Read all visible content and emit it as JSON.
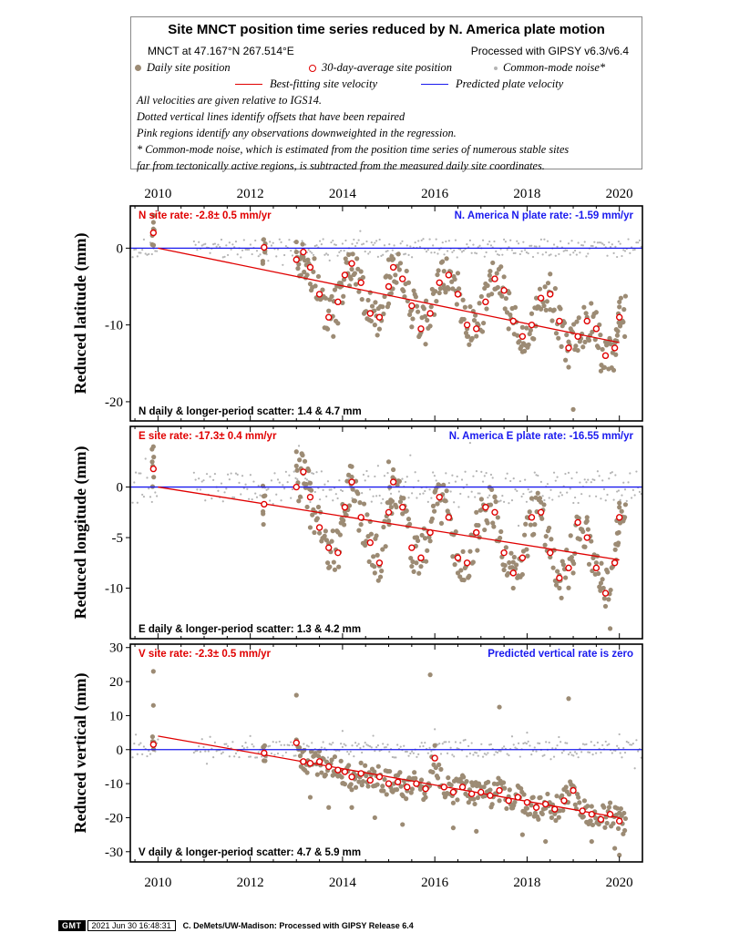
{
  "legend": {
    "title": "Site MNCT position time series reduced by N. America plate motion",
    "site_line": "MNCT at 47.167°N 267.514°E",
    "processed": "Processed with GIPSY v6.3/v6.4",
    "daily_label": "Daily site position",
    "avg_label": "30-day-average site position",
    "noise_label": "Common-mode noise*",
    "fit_label": "Best-fitting site velocity",
    "plate_label": "Predicted plate velocity",
    "notes": [
      "All velocities are given relative to IGS14.",
      "Dotted vertical lines identify offsets that have been repaired",
      "Pink regions identify any observations downweighted in the regression.",
      "* Common-mode noise, which is estimated from the position time series of numerous stable sites",
      "far from tectonically active regions, is subtracted from the measured daily site coordinates."
    ],
    "colors": {
      "daily": "#9c8b74",
      "avg": "#e00000",
      "noise": "#b4b4b4",
      "fit": "#e00000",
      "plate": "#1a1aee"
    }
  },
  "footer": {
    "logo": "GMT",
    "timestamp": "2021 Jun 30 16:48:31",
    "credit": "C. DeMets/UW-Madison: Processed with GIPSY Release 6.4"
  },
  "chart_data": [
    {
      "type": "scatter",
      "component": "N",
      "ylabel": "Reduced latitude (mm)",
      "xlim": [
        2009.4,
        2020.5
      ],
      "ylim": [
        -22.5,
        5.5
      ],
      "xticks": [
        2010,
        2012,
        2014,
        2016,
        2018,
        2020
      ],
      "yticks": [
        0,
        -10,
        -20
      ],
      "site_rate": "N site rate:  -2.8± 0.5 mm/yr",
      "plate_rate": "N. America N plate rate: -1.59 mm/yr",
      "scatter": "N daily & longer-period scatter:   1.4 &   4.7 mm",
      "fit_line": {
        "x": [
          2010.0,
          2020.0
        ],
        "y": [
          0.0,
          -12.3
        ]
      },
      "plate_line": {
        "x": [
          2009.4,
          2020.5
        ],
        "y": [
          0,
          0
        ]
      },
      "series": [
        {
          "name": "30-day-average site position",
          "x": [
            2009.9,
            2012.3,
            2013.0,
            2013.15,
            2013.3,
            2013.5,
            2013.7,
            2013.9,
            2014.05,
            2014.2,
            2014.4,
            2014.6,
            2014.8,
            2015.0,
            2015.1,
            2015.3,
            2015.5,
            2015.7,
            2015.9,
            2016.1,
            2016.3,
            2016.5,
            2016.7,
            2016.9,
            2017.1,
            2017.3,
            2017.5,
            2017.7,
            2017.9,
            2018.1,
            2018.3,
            2018.5,
            2018.7,
            2018.9,
            2019.1,
            2019.3,
            2019.5,
            2019.7,
            2019.9,
            2020.0
          ],
          "y": [
            2.0,
            0.1,
            -1.5,
            -0.5,
            -2.5,
            -6.0,
            -9.0,
            -7.0,
            -3.5,
            -2.0,
            -4.5,
            -8.5,
            -9.0,
            -5.0,
            -2.5,
            -4.0,
            -7.5,
            -10.5,
            -8.5,
            -4.5,
            -3.5,
            -6.0,
            -10.0,
            -10.5,
            -7.0,
            -4.0,
            -5.5,
            -9.5,
            -11.5,
            -10.0,
            -6.5,
            -6.0,
            -9.5,
            -13.0,
            -11.5,
            -9.5,
            -10.5,
            -14.0,
            -13.0,
            -9.0
          ]
        },
        {
          "name": "Daily site position",
          "x": [
            2009.9,
            2013.0,
            2013.5,
            2013.8,
            2014.2,
            2014.7,
            2015.0,
            2015.5,
            2015.8,
            2016.2,
            2016.7,
            2017.2,
            2017.6,
            2017.9,
            2018.2,
            2018.5,
            2018.9,
            2019.0,
            2019.3,
            2019.6,
            2019.8,
            2020.0
          ],
          "y": [
            2.5,
            -0.5,
            -6.5,
            -11.5,
            -2.0,
            -10.0,
            -1.5,
            -8.0,
            -12.5,
            -3.0,
            -11.5,
            -3.0,
            -10.5,
            -13.5,
            -6.5,
            -8.0,
            -15.5,
            -21.0,
            -9.0,
            -16.0,
            -12.0,
            -7.0
          ]
        }
      ]
    },
    {
      "type": "scatter",
      "component": "E",
      "ylabel": "Reduced longitude (mm)",
      "xlim": [
        2009.4,
        2020.5
      ],
      "ylim": [
        -15.0,
        6.0
      ],
      "xticks": [
        2010,
        2012,
        2014,
        2016,
        2018,
        2020
      ],
      "yticks": [
        0,
        -5,
        -10
      ],
      "site_rate": "E site rate: -17.3± 0.4 mm/yr",
      "plate_rate": "N. America E plate rate: -16.55 mm/yr",
      "scatter": "E daily & longer-period scatter:   1.3 &   4.2 mm",
      "fit_line": {
        "x": [
          2010.0,
          2020.0
        ],
        "y": [
          0.0,
          -7.2
        ]
      },
      "plate_line": {
        "x": [
          2009.4,
          2020.5
        ],
        "y": [
          0,
          0
        ]
      },
      "series": [
        {
          "name": "30-day-average site position",
          "x": [
            2009.9,
            2012.3,
            2013.0,
            2013.15,
            2013.3,
            2013.5,
            2013.7,
            2013.9,
            2014.05,
            2014.2,
            2014.4,
            2014.6,
            2014.8,
            2015.0,
            2015.1,
            2015.3,
            2015.5,
            2015.7,
            2015.9,
            2016.1,
            2016.3,
            2016.5,
            2016.7,
            2016.9,
            2017.1,
            2017.3,
            2017.5,
            2017.7,
            2017.9,
            2018.1,
            2018.3,
            2018.5,
            2018.7,
            2018.9,
            2019.1,
            2019.3,
            2019.5,
            2019.7,
            2019.9,
            2020.0
          ],
          "y": [
            1.8,
            -1.7,
            0.0,
            1.5,
            -1.0,
            -4.0,
            -6.0,
            -6.5,
            -2.0,
            0.5,
            -3.0,
            -5.5,
            -7.5,
            -2.5,
            0.5,
            -2.0,
            -6.0,
            -7.0,
            -4.5,
            -1.0,
            -3.0,
            -7.0,
            -7.5,
            -4.5,
            -2.0,
            -2.5,
            -6.5,
            -8.5,
            -7.0,
            -3.0,
            -2.5,
            -6.5,
            -9.0,
            -8.0,
            -3.5,
            -5.0,
            -8.0,
            -10.5,
            -7.5,
            -3.0
          ]
        },
        {
          "name": "Daily site position",
          "x": [
            2009.9,
            2013.0,
            2013.3,
            2013.7,
            2014.2,
            2014.7,
            2015.0,
            2015.6,
            2016.0,
            2016.5,
            2016.9,
            2017.3,
            2017.7,
            2018.0,
            2018.3,
            2018.7,
            2019.0,
            2019.3,
            2019.6,
            2019.8,
            2020.0
          ],
          "y": [
            4.0,
            3.5,
            -4.0,
            -8.0,
            1.0,
            -8.5,
            2.5,
            -7.5,
            -0.5,
            -8.5,
            -2.5,
            -1.0,
            -10.0,
            -3.0,
            -1.5,
            -10.0,
            -8.5,
            -3.0,
            -9.5,
            -14.0,
            -2.0
          ]
        }
      ]
    },
    {
      "type": "scatter",
      "component": "V",
      "ylabel": "Reduced vertical (mm)",
      "xlim": [
        2009.4,
        2020.5
      ],
      "ylim": [
        -33.0,
        31.0
      ],
      "xticks": [
        2010,
        2012,
        2014,
        2016,
        2018,
        2020
      ],
      "yticks": [
        30,
        20,
        10,
        0,
        -10,
        -20,
        -30
      ],
      "site_rate": "V site rate:  -2.3± 0.5 mm/yr",
      "plate_rate": "Predicted vertical rate is zero",
      "scatter": "V daily & longer-period scatter:   4.7 &   5.9 mm",
      "fit_line": {
        "x": [
          2010.0,
          2020.0
        ],
        "y": [
          4.0,
          -20.0
        ]
      },
      "plate_line": {
        "x": [
          2009.4,
          2020.5
        ],
        "y": [
          0,
          0
        ]
      },
      "series": [
        {
          "name": "30-day-average site position",
          "x": [
            2009.9,
            2012.3,
            2013.0,
            2013.15,
            2013.3,
            2013.5,
            2013.7,
            2013.9,
            2014.05,
            2014.2,
            2014.4,
            2014.6,
            2014.8,
            2015.0,
            2015.2,
            2015.4,
            2015.6,
            2015.8,
            2016.0,
            2016.2,
            2016.4,
            2016.6,
            2016.8,
            2017.0,
            2017.2,
            2017.4,
            2017.6,
            2017.8,
            2018.0,
            2018.2,
            2018.4,
            2018.6,
            2018.8,
            2019.0,
            2019.2,
            2019.4,
            2019.6,
            2019.8,
            2020.0
          ],
          "y": [
            1.5,
            -1.0,
            2.0,
            -3.5,
            -4.0,
            -3.5,
            -5.0,
            -6.0,
            -6.5,
            -8.0,
            -7.0,
            -9.0,
            -8.0,
            -10.0,
            -9.5,
            -11.0,
            -10.0,
            -11.5,
            -2.5,
            -11.0,
            -12.5,
            -11.0,
            -13.0,
            -12.5,
            -13.5,
            -12.0,
            -15.0,
            -14.0,
            -15.5,
            -17.0,
            -16.0,
            -17.5,
            -15.0,
            -12.0,
            -18.0,
            -19.0,
            -20.5,
            -19.0,
            -21.0
          ]
        },
        {
          "name": "Daily site position",
          "x": [
            2009.9,
            2009.9,
            2013.0,
            2013.3,
            2013.7,
            2014.2,
            2014.7,
            2015.3,
            2015.9,
            2016.4,
            2016.9,
            2017.4,
            2017.9,
            2018.4,
            2018.9,
            2019.4,
            2019.9,
            2020.0
          ],
          "y": [
            23.0,
            13.0,
            16.0,
            -14.0,
            -17.0,
            -17.0,
            -20.0,
            -22.0,
            22.0,
            -23.0,
            -24.0,
            12.5,
            -25.0,
            -27.0,
            15.0,
            -27.0,
            -29.0,
            -31.0
          ]
        },
        {
          "name": "Common-mode noise*",
          "x": [
            2010.0,
            2012.0,
            2014.0,
            2016.0,
            2018.0,
            2020.0
          ],
          "y": [
            3.0,
            4.0,
            5.5,
            6.0,
            5.0,
            4.5
          ]
        }
      ]
    }
  ]
}
